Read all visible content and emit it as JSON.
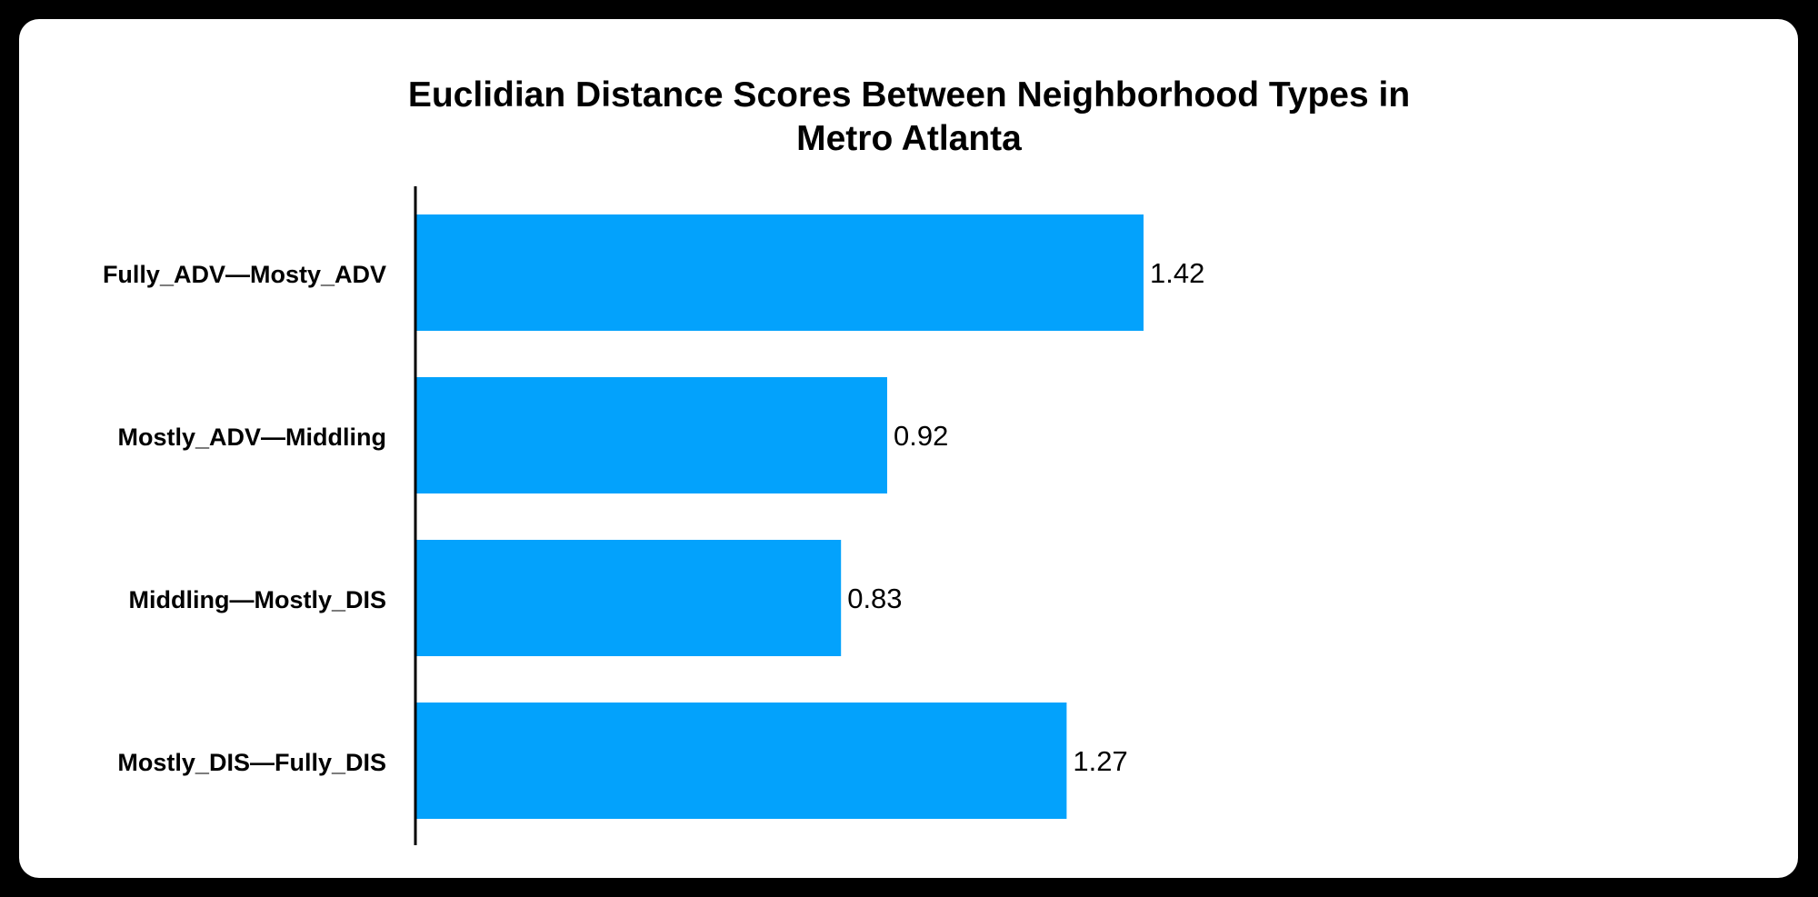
{
  "chart_data": {
    "type": "bar",
    "orientation": "horizontal",
    "title_lines": [
      "Euclidian Distance Scores Between Neighborhood Types in",
      "Metro Atlanta"
    ],
    "categories": [
      "Fully_ADV—Mosty_ADV",
      "Mostly_ADV—Middling",
      "Middling—Mostly_DIS",
      "Mostly_DIS—Fully_DIS"
    ],
    "values": [
      1.42,
      0.92,
      0.83,
      1.27
    ],
    "value_labels": [
      "1.42",
      "0.92",
      "0.83",
      "1.27"
    ],
    "xlabel": "",
    "ylabel": "",
    "xlim": [
      0,
      2.15
    ],
    "grid": false,
    "legend": "none",
    "bar_color": "#03a2fc",
    "background": "#ffffff",
    "frame_color": "#000000"
  }
}
